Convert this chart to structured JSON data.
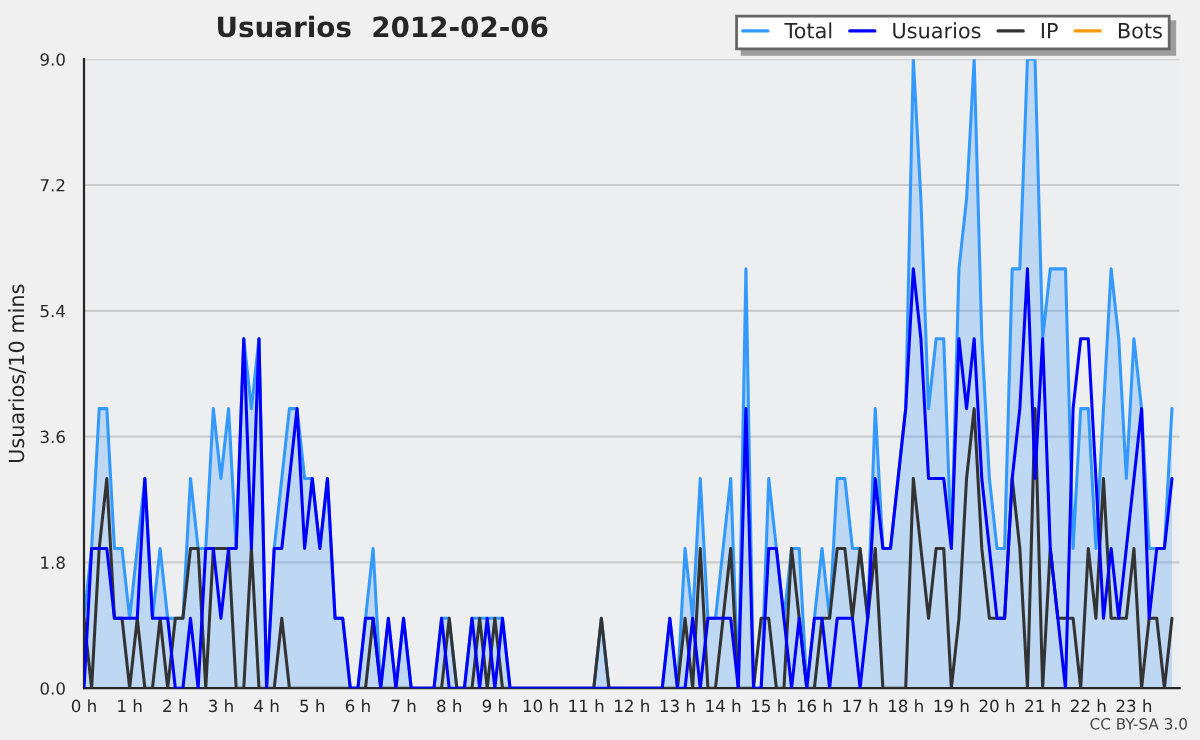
{
  "chart_data": {
    "type": "line",
    "title": "Usuarios  2012-02-06",
    "ylabel": "Usuarios/10 mins",
    "x": [
      0,
      0.167,
      0.333,
      0.5,
      0.667,
      0.833,
      1,
      1.167,
      1.333,
      1.5,
      1.667,
      1.833,
      2,
      2.167,
      2.333,
      2.5,
      2.667,
      2.833,
      3,
      3.167,
      3.333,
      3.5,
      3.667,
      3.833,
      4,
      4.167,
      4.333,
      4.5,
      4.667,
      4.833,
      5,
      5.167,
      5.333,
      5.5,
      5.667,
      5.833,
      6,
      6.167,
      6.333,
      6.5,
      6.667,
      6.833,
      7,
      7.167,
      7.333,
      7.5,
      7.667,
      7.833,
      8,
      8.167,
      8.333,
      8.5,
      8.667,
      8.833,
      9,
      9.167,
      9.333,
      9.5,
      9.667,
      9.833,
      10,
      10.167,
      10.333,
      10.5,
      10.667,
      10.833,
      11,
      11.167,
      11.333,
      11.5,
      11.667,
      11.833,
      12,
      12.167,
      12.333,
      12.5,
      12.667,
      12.833,
      13,
      13.167,
      13.333,
      13.5,
      13.667,
      13.833,
      14,
      14.167,
      14.333,
      14.5,
      14.667,
      14.833,
      15,
      15.167,
      15.333,
      15.5,
      15.667,
      15.833,
      16,
      16.167,
      16.333,
      16.5,
      16.667,
      16.833,
      17,
      17.167,
      17.333,
      17.5,
      17.667,
      17.833,
      18,
      18.167,
      18.333,
      18.5,
      18.667,
      18.833,
      19,
      19.167,
      19.333,
      19.5,
      19.667,
      19.833,
      20,
      20.167,
      20.333,
      20.5,
      20.667,
      20.833,
      21,
      21.167,
      21.333,
      21.5,
      21.667,
      21.833,
      22,
      22.167,
      22.333,
      22.5,
      22.667,
      22.833,
      23,
      23.167,
      23.333,
      23.5,
      23.667,
      23.833
    ],
    "series": [
      {
        "name": "Total",
        "type": "area",
        "color": "#3399ff",
        "values": [
          1,
          2,
          4,
          4,
          2,
          2,
          1,
          2,
          3,
          1,
          2,
          1,
          1,
          1,
          3,
          2,
          2,
          4,
          3,
          4,
          2,
          5,
          4,
          5,
          0,
          2,
          3,
          4,
          4,
          3,
          3,
          2,
          3,
          1,
          1,
          0,
          0,
          1,
          2,
          0,
          1,
          0,
          1,
          0,
          0,
          0,
          0,
          1,
          1,
          0,
          0,
          1,
          1,
          1,
          1,
          1,
          0,
          0,
          0,
          0,
          0,
          0,
          0,
          0,
          0,
          0,
          0,
          0,
          1,
          0,
          0,
          0,
          0,
          0,
          0,
          0,
          0,
          1,
          0,
          2,
          1,
          3,
          1,
          1,
          2,
          3,
          0,
          6,
          0,
          0,
          3,
          2,
          1,
          2,
          2,
          0,
          1,
          2,
          1,
          3,
          3,
          2,
          2,
          1,
          4,
          2,
          2,
          3,
          4,
          9,
          7,
          4,
          5,
          5,
          2,
          6,
          7,
          9,
          5,
          3,
          2,
          2,
          6,
          6,
          9,
          9,
          5,
          6,
          6,
          6,
          2,
          4,
          4,
          2,
          4,
          6,
          5,
          3,
          5,
          4,
          2,
          2,
          2,
          4
        ]
      },
      {
        "name": "Usuarios",
        "color": "#0000ff",
        "values": [
          0,
          2,
          2,
          2,
          1,
          1,
          1,
          1,
          3,
          1,
          1,
          1,
          0,
          0,
          1,
          0,
          2,
          2,
          1,
          2,
          2,
          5,
          2,
          5,
          0,
          2,
          2,
          3,
          4,
          2,
          3,
          2,
          3,
          1,
          1,
          0,
          0,
          1,
          1,
          0,
          1,
          0,
          1,
          0,
          0,
          0,
          0,
          1,
          0,
          0,
          0,
          1,
          0,
          1,
          0,
          1,
          0,
          0,
          0,
          0,
          0,
          0,
          0,
          0,
          0,
          0,
          0,
          0,
          0,
          0,
          0,
          0,
          0,
          0,
          0,
          0,
          0,
          1,
          0,
          0,
          1,
          0,
          1,
          1,
          1,
          1,
          0,
          4,
          0,
          0,
          2,
          2,
          1,
          0,
          1,
          0,
          1,
          1,
          0,
          1,
          1,
          1,
          0,
          1,
          3,
          2,
          2,
          3,
          4,
          6,
          5,
          3,
          3,
          3,
          2,
          5,
          4,
          5,
          3,
          2,
          1,
          1,
          3,
          4,
          6,
          3,
          5,
          2,
          1,
          0,
          4,
          5,
          5,
          3,
          1,
          2,
          1,
          2,
          3,
          4,
          1,
          2,
          2,
          3
        ]
      },
      {
        "name": "IP",
        "color": "#333333",
        "values": [
          1,
          0,
          2,
          3,
          1,
          1,
          0,
          1,
          0,
          0,
          1,
          0,
          1,
          1,
          2,
          2,
          0,
          2,
          2,
          2,
          0,
          0,
          2,
          0,
          0,
          0,
          1,
          0,
          0,
          0,
          0,
          0,
          0,
          0,
          0,
          0,
          0,
          0,
          1,
          0,
          0,
          0,
          0,
          0,
          0,
          0,
          0,
          0,
          1,
          0,
          0,
          0,
          1,
          0,
          1,
          0,
          0,
          0,
          0,
          0,
          0,
          0,
          0,
          0,
          0,
          0,
          0,
          0,
          1,
          0,
          0,
          0,
          0,
          0,
          0,
          0,
          0,
          0,
          0,
          1,
          0,
          2,
          0,
          0,
          1,
          2,
          0,
          0,
          0,
          1,
          1,
          0,
          0,
          2,
          1,
          0,
          0,
          1,
          1,
          2,
          2,
          1,
          2,
          1,
          2,
          0,
          0,
          0,
          0,
          3,
          2,
          1,
          2,
          2,
          0,
          1,
          3,
          4,
          2,
          1,
          1,
          1,
          3,
          2,
          0,
          4,
          0,
          2,
          1,
          1,
          1,
          0,
          2,
          1,
          3,
          1,
          1,
          1,
          2,
          0,
          1,
          1,
          0,
          1
        ]
      },
      {
        "name": "Bots",
        "color": "#ff9900",
        "values": [
          null,
          null,
          null,
          null,
          null,
          null,
          null,
          null,
          null,
          null,
          null,
          null,
          null,
          null,
          null,
          null,
          null,
          null,
          null,
          null,
          null,
          null,
          null,
          null,
          null,
          null,
          null,
          null,
          null,
          null,
          null,
          null,
          null,
          null,
          null,
          null,
          null,
          null,
          null,
          null,
          null,
          null,
          null,
          null,
          null,
          null,
          null,
          null,
          null,
          null,
          null,
          null,
          null,
          null,
          null,
          null,
          null,
          null,
          null,
          null,
          null,
          null,
          null,
          null,
          null,
          null,
          null,
          null,
          null,
          null,
          null,
          null,
          null,
          null,
          null,
          null,
          null,
          null,
          null,
          null,
          null,
          null,
          null,
          null,
          null,
          null,
          null,
          null,
          null,
          null,
          null,
          null,
          null,
          null,
          null,
          null,
          null,
          null,
          null,
          null,
          null,
          null,
          null,
          null,
          null,
          null,
          null,
          null,
          null,
          null,
          null,
          null,
          null,
          null,
          null,
          null,
          null,
          null,
          null,
          null,
          null,
          null,
          null,
          null,
          null,
          null,
          null,
          null,
          null,
          null,
          null,
          null,
          null,
          null,
          null,
          null,
          null,
          null,
          null,
          null,
          null,
          null,
          null,
          null
        ]
      }
    ],
    "xlim": [
      0,
      24
    ],
    "xticks": [
      {
        "value": 0,
        "label": "0 h"
      },
      {
        "value": 1,
        "label": "1 h"
      },
      {
        "value": 2,
        "label": "2 h"
      },
      {
        "value": 3,
        "label": "3 h"
      },
      {
        "value": 4,
        "label": "4 h"
      },
      {
        "value": 5,
        "label": "5 h"
      },
      {
        "value": 6,
        "label": "6 h"
      },
      {
        "value": 7,
        "label": "7 h"
      },
      {
        "value": 8,
        "label": "8 h"
      },
      {
        "value": 9,
        "label": "9 h"
      },
      {
        "value": 10,
        "label": "10 h"
      },
      {
        "value": 11,
        "label": "11 h"
      },
      {
        "value": 12,
        "label": "12 h"
      },
      {
        "value": 13,
        "label": "13 h"
      },
      {
        "value": 14,
        "label": "14 h"
      },
      {
        "value": 15,
        "label": "15 h"
      },
      {
        "value": 16,
        "label": "16 h"
      },
      {
        "value": 17,
        "label": "17 h"
      },
      {
        "value": 18,
        "label": "18 h"
      },
      {
        "value": 19,
        "label": "19 h"
      },
      {
        "value": 20,
        "label": "20 h"
      },
      {
        "value": 21,
        "label": "21 h"
      },
      {
        "value": 22,
        "label": "22 h"
      },
      {
        "value": 23,
        "label": "23 h"
      }
    ],
    "ylim": [
      0,
      9
    ],
    "yticks": [
      {
        "value": 0,
        "label": "0.0"
      },
      {
        "value": 1.8,
        "label": "1.8"
      },
      {
        "value": 3.6,
        "label": "3.6"
      },
      {
        "value": 5.4,
        "label": "5.4"
      },
      {
        "value": 7.2,
        "label": "7.2"
      },
      {
        "value": 9,
        "label": "9.0"
      }
    ],
    "grid": "y",
    "legend": "top right",
    "annotations": [
      "CC BY-SA 3.0"
    ]
  }
}
